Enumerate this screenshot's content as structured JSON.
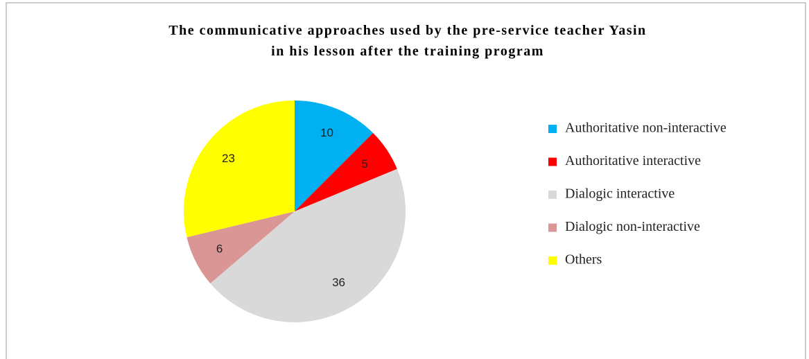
{
  "chart_data": {
    "type": "pie",
    "title": [
      "The communicative approaches used by the pre-service teacher Yasin",
      "in his lesson after the training program"
    ],
    "categories": [
      "Authoritative non-interactive",
      "Authoritative interactive",
      "Dialogic interactive",
      "Dialogic non-interactive",
      "Others"
    ],
    "values": [
      10,
      5,
      36,
      6,
      23
    ],
    "colors": [
      "#00b0f0",
      "#ff0000",
      "#d9d9d9",
      "#d99694",
      "#ffff00"
    ],
    "legend": "right"
  }
}
